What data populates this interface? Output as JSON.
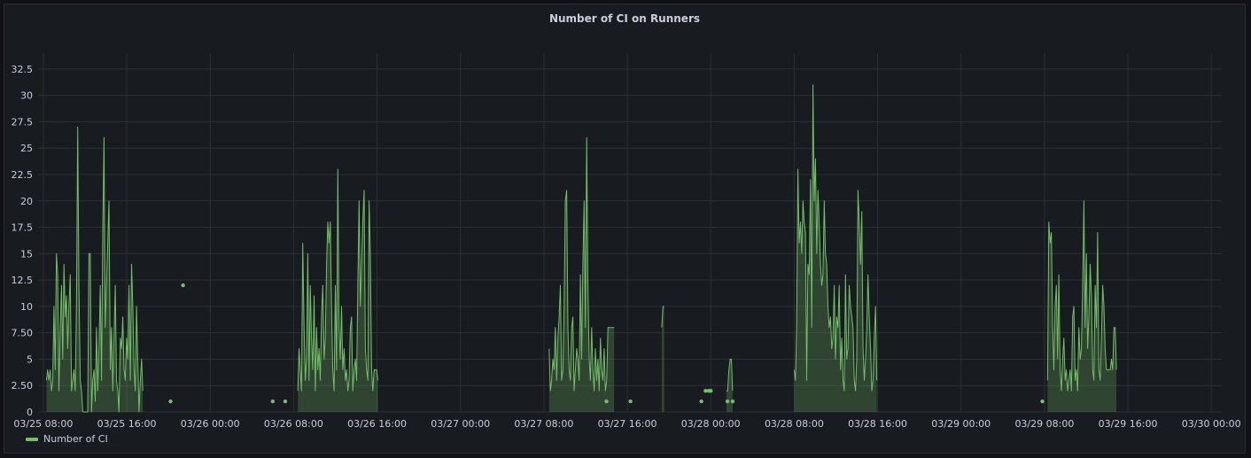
{
  "panel": {
    "title": "Number of CI on Runners"
  },
  "chart_data": {
    "type": "area",
    "title": "Number of CI on Runners",
    "x_axis": {
      "type": "time",
      "range": [
        "03/24 21:00",
        "03/30 00:30"
      ],
      "tick_labels": [
        "03/25 08:00",
        "03/25 16:00",
        "03/26 00:00",
        "03/26 08:00",
        "03/26 16:00",
        "03/27 00:00",
        "03/27 08:00",
        "03/27 16:00",
        "03/28 00:00",
        "03/28 08:00",
        "03/28 16:00",
        "03/29 00:00",
        "03/29 08:00",
        "03/29 16:00",
        "03/30 00:00"
      ],
      "tick_hours": [
        11,
        19,
        27,
        35,
        43,
        51,
        59,
        67,
        75,
        83,
        91,
        99,
        107,
        115,
        123
      ]
    },
    "y_axis": {
      "range": [
        0,
        34
      ],
      "tick_values": [
        0,
        2.5,
        5,
        7.5,
        10,
        12.5,
        15,
        17.5,
        20,
        22.5,
        25,
        27.5,
        30,
        32.5
      ],
      "tick_labels": [
        "0",
        "2.50",
        "5",
        "7.50",
        "10",
        "12.5",
        "15",
        "17.5",
        "20",
        "22.5",
        "25",
        "27.5",
        "30",
        "32.5"
      ]
    },
    "grid": true,
    "legend_position": "bottom-left",
    "series": [
      {
        "name": "Number of CI",
        "color": "#73bf69",
        "fill_color": "rgba(115,191,105,0.25)",
        "bursts": [
          {
            "start_hour": 11.3,
            "step_hours": 0.12,
            "values": [
              3,
              4,
              3,
              4,
              2,
              3,
              10,
              4,
              15,
              13,
              2,
              8,
              12,
              5,
              14,
              9,
              11,
              6,
              10,
              13,
              2,
              3,
              4,
              2,
              10,
              27,
              12,
              3,
              2,
              0,
              0,
              0,
              0,
              0,
              15,
              15,
              0,
              3,
              4,
              1,
              8,
              2,
              6,
              12,
              3,
              17,
              26,
              8,
              12,
              16,
              20,
              4,
              8,
              2,
              7,
              12,
              3,
              2,
              0,
              7,
              6,
              9,
              4,
              3,
              7,
              5,
              12,
              3,
              14,
              10,
              4,
              2,
              10,
              5,
              0,
              3,
              5,
              2
            ]
          },
          {
            "start_hour": 35.4,
            "step_hours": 0.12,
            "values": [
              2,
              6,
              4,
              2,
              16,
              8,
              3,
              5,
              15,
              3,
              12,
              7,
              4,
              11,
              2,
              8,
              4,
              6,
              3,
              9,
              12,
              5,
              7,
              14,
              18,
              16,
              18,
              10,
              4,
              2,
              12,
              4,
              23,
              8,
              5,
              10,
              4,
              6,
              3,
              4,
              2,
              3,
              8,
              9,
              2,
              4,
              5,
              3,
              12,
              20,
              10,
              14,
              18,
              21,
              6,
              4,
              3,
              20,
              15,
              4,
              2,
              4,
              4,
              4,
              3
            ]
          },
          {
            "start_hour": 59.5,
            "step_hours": 0.12,
            "values": [
              6,
              2,
              3,
              5,
              4,
              8,
              3,
              7,
              9,
              12,
              3,
              4,
              10,
              20,
              21,
              8,
              4,
              3,
              8,
              9,
              2,
              4,
              6,
              5,
              3,
              13,
              5,
              14,
              20,
              8,
              26,
              12,
              5,
              3,
              8,
              4,
              2,
              6,
              3,
              5,
              2,
              7,
              4,
              3,
              6,
              2,
              3,
              8,
              8,
              8,
              8,
              8,
              8
            ]
          },
          {
            "start_hour": 70.3,
            "step_hours": 0.12,
            "values": [
              8,
              10,
              10
            ]
          },
          {
            "start_hour": 76.5,
            "step_hours": 0.12,
            "values": [
              2,
              2,
              4,
              5,
              5,
              2
            ]
          },
          {
            "start_hour": 83.0,
            "step_hours": 0.12,
            "values": [
              4,
              3,
              8,
              23,
              16,
              18,
              15,
              20,
              18,
              17,
              3,
              14,
              13,
              22,
              8,
              31,
              20,
              24,
              15,
              21,
              18,
              14,
              12,
              13,
              20,
              15,
              14,
              10,
              8,
              9,
              6,
              7,
              12,
              5,
              9,
              8,
              12,
              4,
              7,
              3,
              2,
              13,
              5,
              6,
              12,
              10,
              9,
              8,
              3,
              2,
              5,
              21,
              18,
              14,
              19,
              6,
              3,
              5,
              8,
              13,
              9,
              6,
              2,
              3,
              7,
              10,
              3
            ]
          },
          {
            "start_hour": 107.3,
            "step_hours": 0.12,
            "values": [
              3,
              18,
              16,
              17,
              8,
              4,
              10,
              12,
              5,
              13,
              4,
              2,
              5,
              7,
              3,
              4,
              2,
              3,
              4,
              2,
              9,
              10,
              3,
              4,
              2,
              8,
              5,
              6,
              12,
              20,
              8,
              15,
              6,
              9,
              14,
              11,
              4,
              3,
              12,
              8,
              17,
              4,
              3,
              7,
              12,
              10,
              6,
              4,
              4,
              4,
              4,
              5,
              4,
              8,
              8,
              4
            ]
          }
        ],
        "isolated_points": [
          {
            "hour": 23.2,
            "value": 1
          },
          {
            "hour": 24.4,
            "value": 12
          },
          {
            "hour": 33.0,
            "value": 1
          },
          {
            "hour": 34.2,
            "value": 1
          },
          {
            "hour": 65.0,
            "value": 1
          },
          {
            "hour": 67.3,
            "value": 1
          },
          {
            "hour": 74.1,
            "value": 1
          },
          {
            "hour": 74.5,
            "value": 2
          },
          {
            "hour": 74.8,
            "value": 2
          },
          {
            "hour": 75.0,
            "value": 2
          },
          {
            "hour": 76.6,
            "value": 1
          },
          {
            "hour": 77.1,
            "value": 1
          },
          {
            "hour": 106.8,
            "value": 1
          }
        ]
      }
    ]
  }
}
